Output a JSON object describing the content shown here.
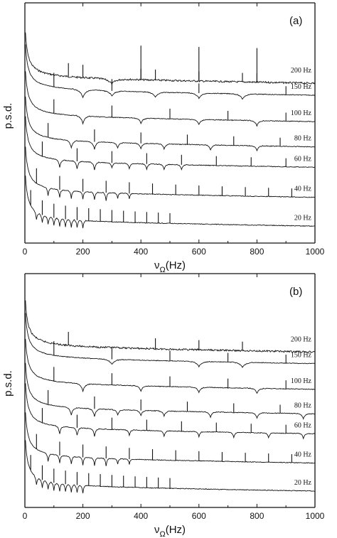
{
  "chart_data": [
    {
      "type": "line",
      "panel_label": "(a)",
      "xlabel": "ν",
      "xlabel_sub": "Ω",
      "xlabel_unit": "(Hz)",
      "ylabel": "p.s.d.",
      "xlim": [
        0,
        1000
      ],
      "x_ticks": [
        "0",
        "200",
        "400",
        "600",
        "800",
        "1000"
      ],
      "grid": false,
      "series": [
        {
          "name": "200 Hz",
          "f": 200,
          "dip_positions": [
            300
          ],
          "spike_positions": [
            150,
            200,
            400,
            450,
            600,
            750,
            800
          ],
          "peak_positions": [
            400,
            600,
            800
          ]
        },
        {
          "name": "150 Hz",
          "f": 150,
          "dip_positions": [
            200,
            300,
            450,
            600,
            750
          ],
          "spike_positions": [
            100,
            300,
            600,
            900
          ]
        },
        {
          "name": "100 Hz",
          "f": 100,
          "dip_positions": [
            200,
            400,
            600,
            800
          ],
          "spike_positions": [
            100,
            300,
            500,
            700,
            900
          ]
        },
        {
          "name": "80 Hz",
          "f": 80,
          "dip_positions": [
            160,
            240,
            320,
            400,
            480,
            640,
            800
          ],
          "spike_positions": [
            80,
            240,
            400,
            560,
            720,
            880
          ]
        },
        {
          "name": "60 Hz",
          "f": 60,
          "dip_positions": [
            120,
            180,
            240,
            300,
            360,
            420,
            480,
            540
          ],
          "spike_positions": [
            60,
            180,
            300,
            420,
            540,
            660,
            780,
            900
          ]
        },
        {
          "name": "40 Hz",
          "f": 40,
          "dip_positions": [
            80,
            120,
            160,
            200,
            240,
            280,
            320,
            360
          ],
          "spike_positions": [
            40,
            120,
            200,
            280,
            360,
            440,
            520,
            600,
            680,
            760,
            840,
            920
          ]
        },
        {
          "name": "20 Hz",
          "f": 20,
          "dip_positions": [
            40,
            60,
            80,
            100,
            120,
            140,
            160,
            180,
            200
          ],
          "spike_positions": [
            20,
            60,
            100,
            140,
            180,
            220,
            260,
            300,
            340,
            380,
            420,
            460,
            500
          ]
        }
      ]
    },
    {
      "type": "line",
      "panel_label": "(b)",
      "xlabel": "ν",
      "xlabel_sub": "Ω",
      "xlabel_unit": "(Hz)",
      "ylabel": "p.s.d.",
      "xlim": [
        0,
        1000
      ],
      "x_ticks": [
        "0",
        "200",
        "400",
        "600",
        "800",
        "1000"
      ],
      "grid": false,
      "series": [
        {
          "name": "200 Hz",
          "f": 200,
          "dip_positions": [],
          "spike_positions": [
            150,
            450,
            600,
            750
          ]
        },
        {
          "name": "150 Hz",
          "f": 150,
          "dip_positions": [
            300,
            600,
            750
          ],
          "spike_positions": [
            100,
            300,
            500,
            700,
            900
          ]
        },
        {
          "name": "100 Hz",
          "f": 100,
          "dip_positions": [
            200,
            400,
            600,
            800
          ],
          "spike_positions": [
            100,
            300,
            500,
            700,
            900
          ]
        },
        {
          "name": "80 Hz",
          "f": 80,
          "dip_positions": [
            160,
            240,
            320,
            400,
            480,
            640,
            800,
            960
          ],
          "spike_positions": [
            80,
            240,
            400,
            560,
            720,
            880
          ]
        },
        {
          "name": "60 Hz",
          "f": 60,
          "dip_positions": [
            120,
            180,
            240,
            360,
            480,
            600,
            720,
            840,
            960
          ],
          "spike_positions": [
            60,
            180,
            300,
            420,
            540,
            660,
            780,
            900
          ]
        },
        {
          "name": "40 Hz",
          "f": 40,
          "dip_positions": [
            80,
            120,
            160,
            200,
            240,
            280,
            320,
            360
          ],
          "spike_positions": [
            40,
            120,
            200,
            280,
            360,
            440,
            520,
            600,
            680,
            760,
            840,
            920
          ]
        },
        {
          "name": "20 Hz",
          "f": 20,
          "dip_positions": [
            40,
            60,
            80,
            100,
            120,
            140,
            160,
            180,
            200
          ],
          "spike_positions": [
            20,
            60,
            100,
            140,
            180,
            220,
            260,
            300,
            340,
            380,
            420,
            460,
            500
          ]
        }
      ]
    }
  ]
}
